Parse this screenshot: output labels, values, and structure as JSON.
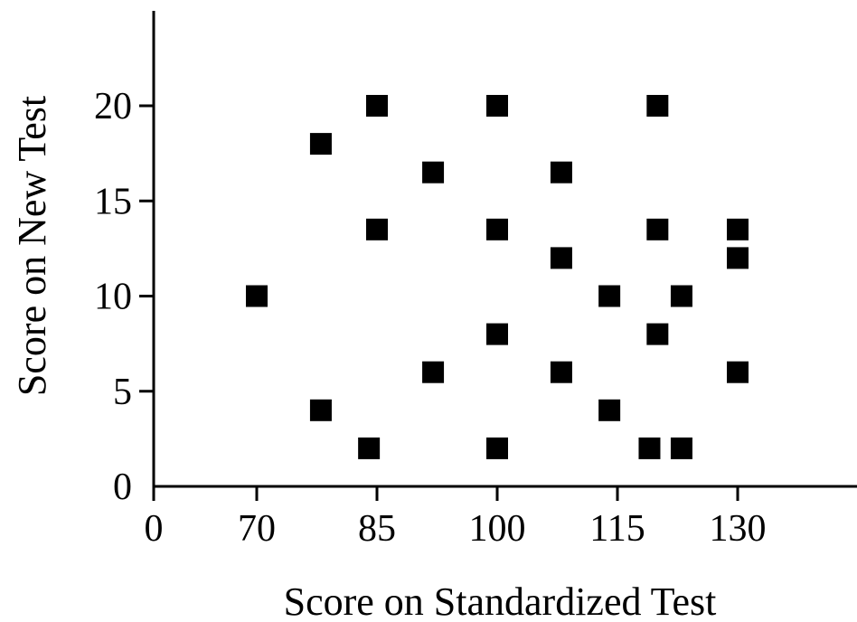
{
  "chart_data": {
    "type": "scatter",
    "xlabel": "Score on Standardized Test",
    "ylabel": "Score on New Test",
    "xlim": [
      0,
      145
    ],
    "ylim": [
      0,
      25
    ],
    "axis_break_x": true,
    "grid": false,
    "marker": "square",
    "colors": {
      "marker": "#000000",
      "axis": "#000000"
    },
    "x_ticks": [
      {
        "value": 0,
        "label": "0"
      },
      {
        "value": 70,
        "label": "70"
      },
      {
        "value": 85,
        "label": "85"
      },
      {
        "value": 100,
        "label": "100"
      },
      {
        "value": 115,
        "label": "115"
      },
      {
        "value": 130,
        "label": "130"
      }
    ],
    "y_ticks": [
      {
        "value": 0,
        "label": "0"
      },
      {
        "value": 5,
        "label": "5"
      },
      {
        "value": 10,
        "label": "10"
      },
      {
        "value": 15,
        "label": "15"
      },
      {
        "value": 20,
        "label": "20"
      }
    ],
    "points": [
      {
        "x": 70,
        "y": 10
      },
      {
        "x": 78,
        "y": 18
      },
      {
        "x": 78,
        "y": 4
      },
      {
        "x": 84,
        "y": 2
      },
      {
        "x": 85,
        "y": 20
      },
      {
        "x": 85,
        "y": 13.5
      },
      {
        "x": 92,
        "y": 16.5
      },
      {
        "x": 92,
        "y": 6
      },
      {
        "x": 100,
        "y": 20
      },
      {
        "x": 100,
        "y": 13.5
      },
      {
        "x": 100,
        "y": 8
      },
      {
        "x": 100,
        "y": 2
      },
      {
        "x": 108,
        "y": 16.5
      },
      {
        "x": 108,
        "y": 12
      },
      {
        "x": 108,
        "y": 6
      },
      {
        "x": 114,
        "y": 10
      },
      {
        "x": 114,
        "y": 4
      },
      {
        "x": 119,
        "y": 2
      },
      {
        "x": 120,
        "y": 20
      },
      {
        "x": 120,
        "y": 13.5
      },
      {
        "x": 120,
        "y": 8
      },
      {
        "x": 123,
        "y": 10
      },
      {
        "x": 123,
        "y": 2
      },
      {
        "x": 130,
        "y": 13.5
      },
      {
        "x": 130,
        "y": 12
      },
      {
        "x": 130,
        "y": 6
      }
    ]
  }
}
